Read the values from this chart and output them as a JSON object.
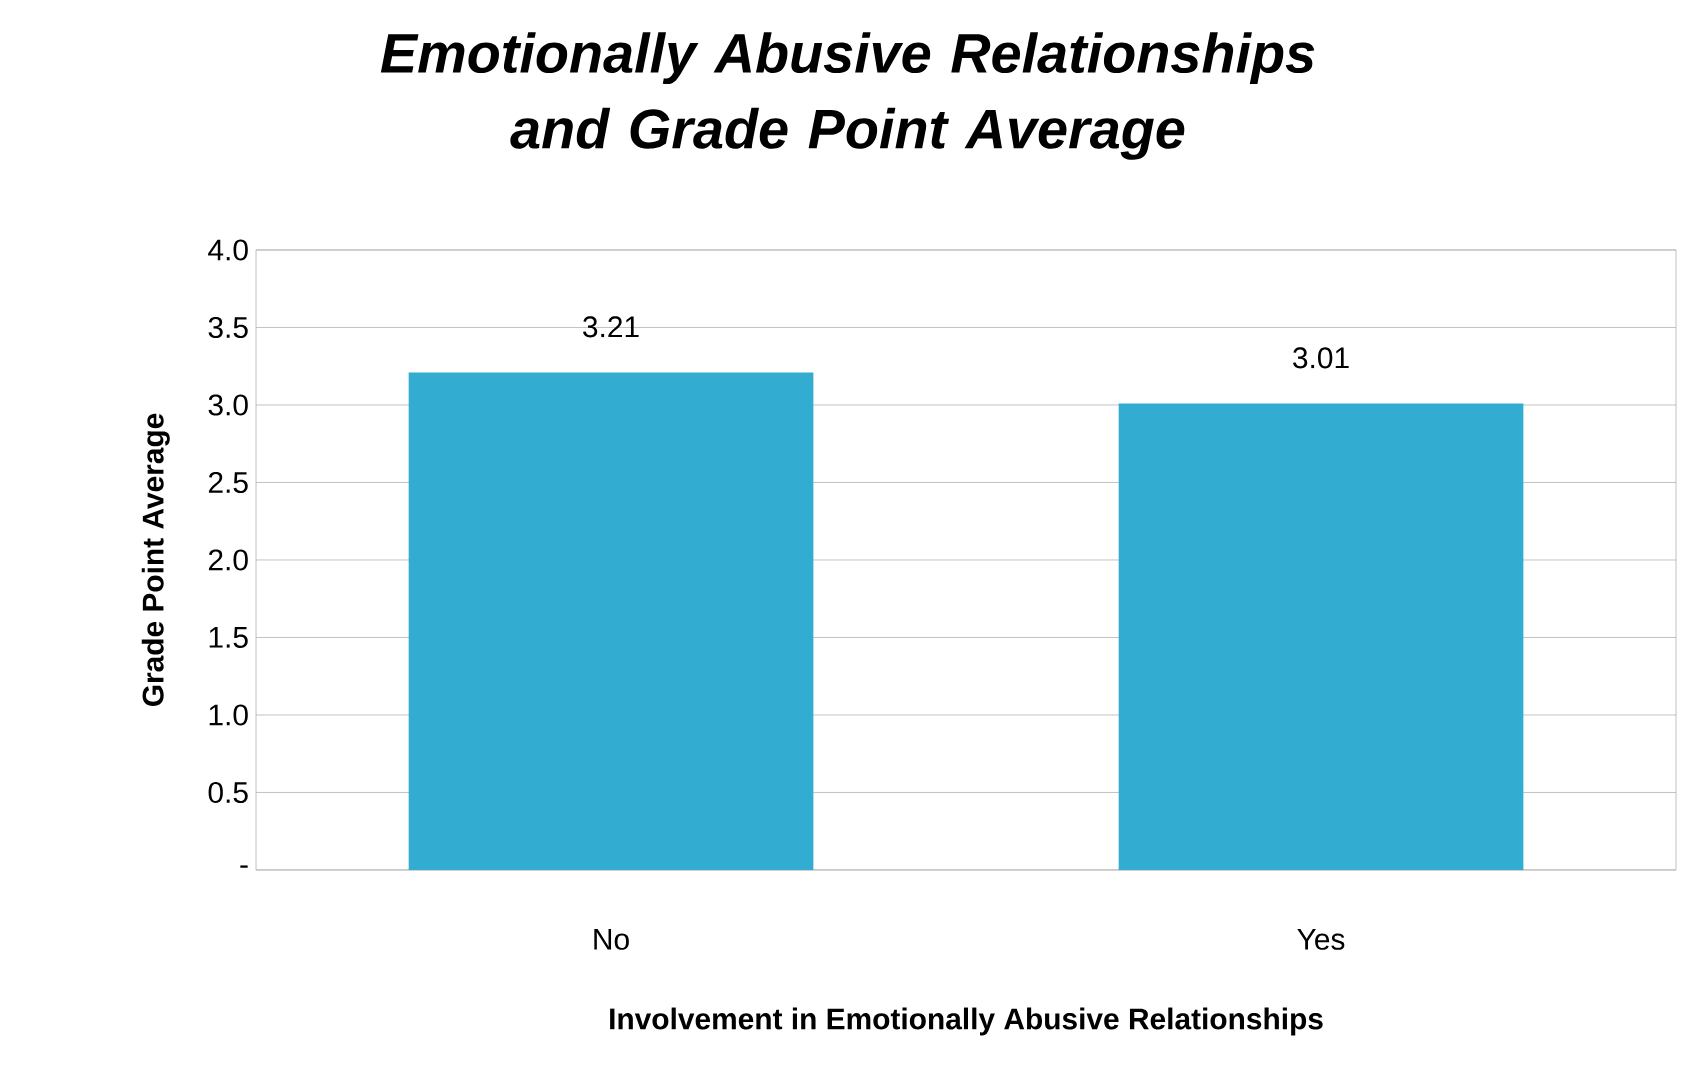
{
  "chart_data": {
    "type": "bar",
    "title": "Emotionally Abusive Relationships and Grade Point Average",
    "xlabel": "Involvement in Emotionally Abusive Relationships",
    "ylabel": "Grade Point Average",
    "categories": [
      "No",
      "Yes"
    ],
    "values": [
      3.21,
      3.01
    ],
    "color": "#33acd2",
    "ylim": [
      0,
      4
    ],
    "yticks": [
      {
        "value": 0,
        "label": "-"
      },
      0.5,
      {
        "value": 1,
        "label": "1.0"
      },
      1.5,
      {
        "value": 2,
        "label": "2.0"
      },
      2.5,
      {
        "value": 3,
        "label": "3.0"
      },
      3.5,
      {
        "value": 4,
        "label": "4.0"
      }
    ],
    "grid": "y",
    "data_labels": true
  }
}
